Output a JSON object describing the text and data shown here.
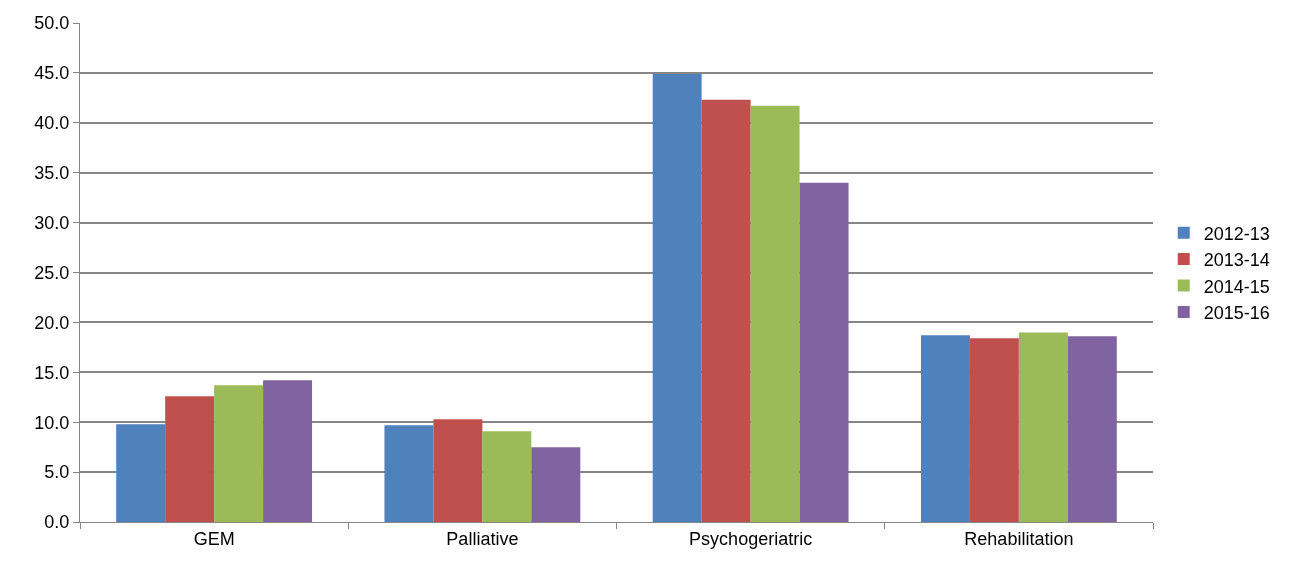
{
  "chart_data": {
    "type": "bar",
    "categories": [
      "GEM",
      "Palliative",
      "Psychogeriatric",
      "Rehabilitation"
    ],
    "series": [
      {
        "name": "2012-13",
        "color": "#4f81bd",
        "values": [
          9.8,
          9.7,
          44.9,
          18.7
        ]
      },
      {
        "name": "2013-14",
        "color": "#c0504d",
        "values": [
          12.6,
          10.3,
          42.3,
          18.4
        ]
      },
      {
        "name": "2014-15",
        "color": "#9bbb59",
        "values": [
          13.7,
          9.1,
          41.7,
          19.0
        ]
      },
      {
        "name": "2015-16",
        "color": "#8064a2",
        "values": [
          14.2,
          7.5,
          34.0,
          18.6
        ]
      }
    ],
    "ylim": [
      0,
      50
    ],
    "yticks": [
      {
        "value": 0,
        "label": "0.0"
      },
      {
        "value": 5,
        "label": "5.0"
      },
      {
        "value": 10,
        "label": "10.0"
      },
      {
        "value": 15,
        "label": "15.0"
      },
      {
        "value": 20,
        "label": "20.0"
      },
      {
        "value": 25,
        "label": "25.0"
      },
      {
        "value": 30,
        "label": "30.0"
      },
      {
        "value": 35,
        "label": "35.0"
      },
      {
        "value": 40,
        "label": "40.0"
      },
      {
        "value": 45,
        "label": "45.0"
      },
      {
        "value": 50,
        "label": "50.0"
      }
    ],
    "grid": "y",
    "legend": "right"
  }
}
